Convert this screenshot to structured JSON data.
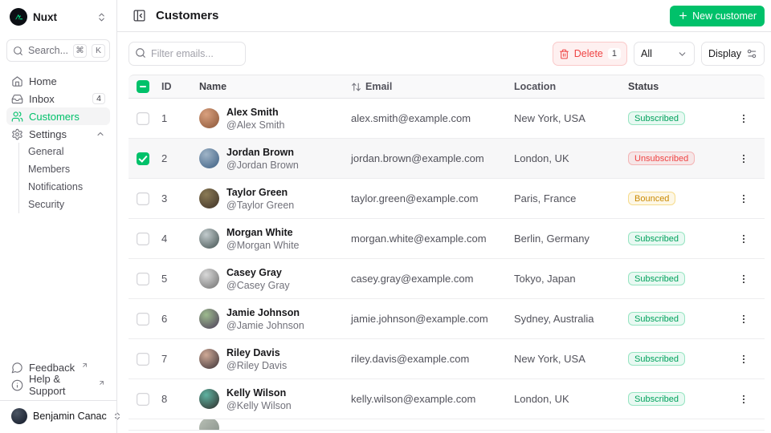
{
  "colors": {
    "primary": "#00c16a",
    "error": "#ef4444",
    "warning": "#ca8a04",
    "logo_green": "#00dc82"
  },
  "sidebar": {
    "workspace_name": "Nuxt",
    "search": {
      "label": "Search...",
      "kbd_meta": "⌘",
      "kbd_key": "K"
    },
    "items": [
      {
        "label": "Home"
      },
      {
        "label": "Inbox",
        "badge": "4"
      },
      {
        "label": "Customers"
      },
      {
        "label": "Settings"
      }
    ],
    "settings_children": [
      "General",
      "Members",
      "Notifications",
      "Security"
    ],
    "footer_items": [
      {
        "label": "Feedback"
      },
      {
        "label": "Help & Support"
      }
    ],
    "user": {
      "name": "Benjamin Canac"
    }
  },
  "header": {
    "title": "Customers",
    "new_customer_label": "New customer"
  },
  "toolbar": {
    "filter_placeholder": "Filter emails...",
    "delete_label": "Delete",
    "delete_count": "1",
    "filter_select_value": "All",
    "display_label": "Display"
  },
  "table": {
    "columns": {
      "id": "ID",
      "name": "Name",
      "email": "Email",
      "location": "Location",
      "status": "Status"
    },
    "rows": [
      {
        "id": "1",
        "name": "Alex Smith",
        "handle": "@Alex Smith",
        "email": "alex.smith@example.com",
        "location": "New York, USA",
        "status": "Subscribed",
        "selected": false,
        "avatar": {
          "c1": "#d9a07e",
          "c2": "#8a5537"
        }
      },
      {
        "id": "2",
        "name": "Jordan Brown",
        "handle": "@Jordan Brown",
        "email": "jordan.brown@example.com",
        "location": "London, UK",
        "status": "Unsubscribed",
        "selected": true,
        "avatar": {
          "c1": "#9fb4c7",
          "c2": "#3c5e82"
        }
      },
      {
        "id": "3",
        "name": "Taylor Green",
        "handle": "@Taylor Green",
        "email": "taylor.green@example.com",
        "location": "Paris, France",
        "status": "Bounced",
        "selected": false,
        "avatar": {
          "c1": "#8a7a55",
          "c2": "#3e3126"
        }
      },
      {
        "id": "4",
        "name": "Morgan White",
        "handle": "@Morgan White",
        "email": "morgan.white@example.com",
        "location": "Berlin, Germany",
        "status": "Subscribed",
        "selected": false,
        "avatar": {
          "c1": "#c2cbcd",
          "c2": "#41504f"
        }
      },
      {
        "id": "5",
        "name": "Casey Gray",
        "handle": "@Casey Gray",
        "email": "casey.gray@example.com",
        "location": "Tokyo, Japan",
        "status": "Subscribed",
        "selected": false,
        "avatar": {
          "c1": "#d8d8d8",
          "c2": "#6e6e6e"
        }
      },
      {
        "id": "6",
        "name": "Jamie Johnson",
        "handle": "@Jamie Johnson",
        "email": "jamie.johnson@example.com",
        "location": "Sydney, Australia",
        "status": "Subscribed",
        "selected": false,
        "avatar": {
          "c1": "#9dbb8e",
          "c2": "#4b3b58"
        }
      },
      {
        "id": "7",
        "name": "Riley Davis",
        "handle": "@Riley Davis",
        "email": "riley.davis@example.com",
        "location": "New York, USA",
        "status": "Subscribed",
        "selected": false,
        "avatar": {
          "c1": "#cfa996",
          "c2": "#3a3136"
        }
      },
      {
        "id": "8",
        "name": "Kelly Wilson",
        "handle": "@Kelly Wilson",
        "email": "kelly.wilson@example.com",
        "location": "London, UK",
        "status": "Subscribed",
        "selected": false,
        "avatar": {
          "c1": "#5fb3a1",
          "c2": "#2e2a28"
        }
      }
    ]
  }
}
